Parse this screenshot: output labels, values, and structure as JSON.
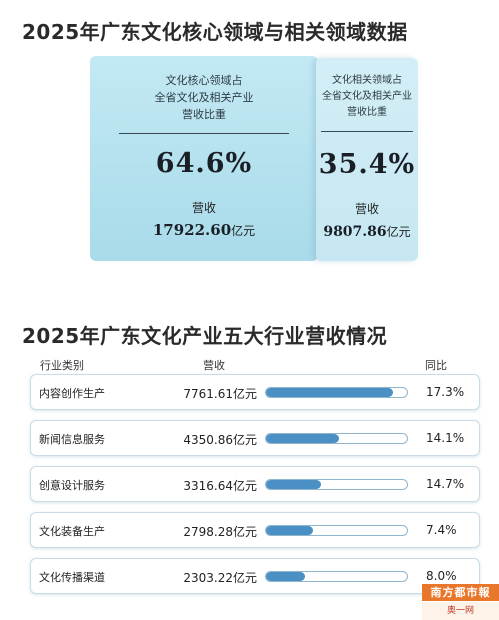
{
  "section1": {
    "title": "2025年广东文化核心领域与相关领域数据",
    "core": {
      "head_lines": [
        "文化核心领域占",
        "全省文化及相关产业",
        "营收比重"
      ],
      "share": "64.6%",
      "revenue_label": "营收",
      "revenue_value": "17922.60",
      "revenue_unit": "亿元"
    },
    "related": {
      "head_lines": [
        "文化相关领域占",
        "全省文化及相关产业",
        "营收比重"
      ],
      "share": "35.4%",
      "revenue_label": "营收",
      "revenue_value": "9807.86",
      "revenue_unit": "亿元"
    }
  },
  "section2": {
    "title": "2025年广东文化产业五大行业营收情况",
    "headers": {
      "category": "行业类别",
      "revenue": "营收",
      "yoy": "同比"
    }
  },
  "chart_data": {
    "type": "bar",
    "categories": [
      "内容创作生产",
      "新闻信息服务",
      "创意设计服务",
      "文化装备生产",
      "文化传播渠道"
    ],
    "values": [
      7761.61,
      4350.86,
      3316.64,
      2798.28,
      2303.22
    ],
    "value_labels": [
      "7761.61亿元",
      "4350.86亿元",
      "3316.64亿元",
      "2798.28亿元",
      "2303.22亿元"
    ],
    "yoy_labels": [
      "17.3%",
      "14.1%",
      "14.7%",
      "7.4%",
      "8.0%"
    ],
    "yoy_values": [
      17.3,
      14.1,
      14.7,
      7.4,
      8.0
    ],
    "progress_fraction": [
      0.9,
      0.52,
      0.39,
      0.33,
      0.28
    ],
    "colors": {
      "bar_fill": "#4a90c4",
      "bar_track_border": "#8fb6cc"
    }
  },
  "watermark": {
    "line1": "南方都市報",
    "line2": "奥一网 oeeee.com"
  },
  "colors": {
    "core_card": "#b4e1ee",
    "related_card": "#c6e7f1",
    "watermark_orange": "#e8762b"
  }
}
